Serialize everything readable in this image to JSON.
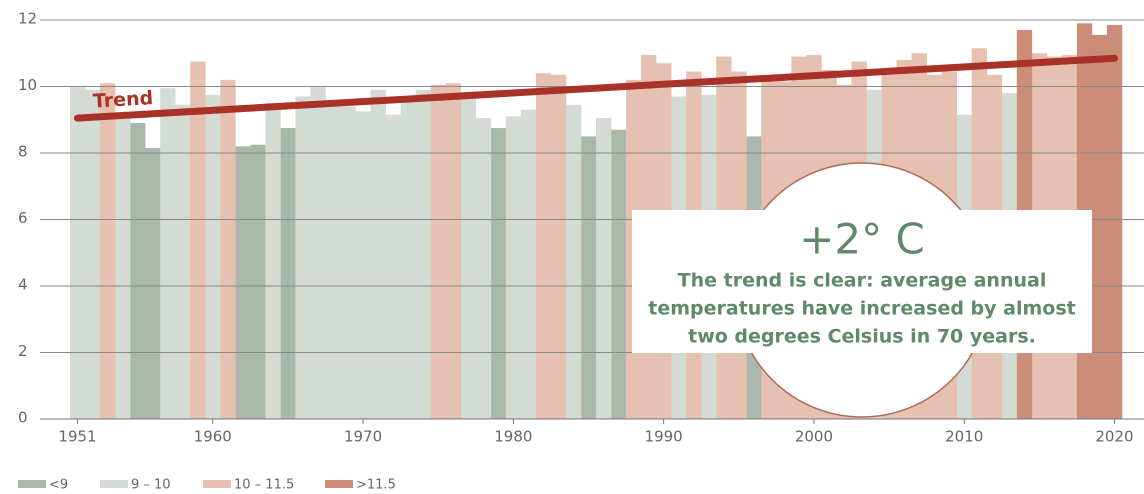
{
  "chart_data": {
    "type": "bar",
    "xlim": [
      1950.5,
      2020.5
    ],
    "xticks": [
      1951,
      1960,
      1970,
      1980,
      1990,
      2000,
      2010,
      2020
    ],
    "ylim": [
      0,
      12
    ],
    "yticks": [
      0,
      2,
      4,
      6,
      8,
      10,
      12
    ],
    "grid": true,
    "series": [
      {
        "name": "<9",
        "color": "#a9b8ab",
        "x": [
          1955,
          1956,
          1962,
          1963,
          1965,
          1979,
          1985,
          1987,
          1996
        ],
        "values": [
          8.9,
          8.15,
          8.2,
          8.25,
          8.75,
          8.75,
          8.5,
          8.7,
          8.5
        ]
      },
      {
        "name": "9 – 10",
        "color": "#d3dbd4",
        "x": [
          1951,
          1952,
          1954,
          1957,
          1958,
          1960,
          1964,
          1966,
          1967,
          1968,
          1969,
          1970,
          1971,
          1972,
          1973,
          1974,
          1977,
          1978,
          1980,
          1981,
          1984,
          1986,
          1991,
          1993,
          2004,
          2010,
          2013
        ],
        "values": [
          9.98,
          9.9,
          9.1,
          9.95,
          9.45,
          9.75,
          9.5,
          9.7,
          9.98,
          9.4,
          9.4,
          9.25,
          9.9,
          9.15,
          9.6,
          9.9,
          9.7,
          9.05,
          9.1,
          9.3,
          9.45,
          9.05,
          9.7,
          9.75,
          9.9,
          9.15,
          9.8
        ]
      },
      {
        "name": "10 – 11.5",
        "color": "#e6c1b2",
        "x": [
          1953,
          1959,
          1961,
          1975,
          1976,
          1982,
          1983,
          1988,
          1989,
          1990,
          1992,
          1994,
          1995,
          1997,
          1998,
          1999,
          2000,
          2001,
          2002,
          2003,
          2005,
          2006,
          2007,
          2008,
          2009,
          2011,
          2012,
          2015,
          2016,
          2017
        ],
        "values": [
          10.1,
          10.75,
          10.2,
          10.05,
          10.1,
          10.4,
          10.35,
          10.2,
          10.95,
          10.7,
          10.45,
          10.9,
          10.45,
          10.2,
          10.15,
          10.9,
          10.95,
          10.5,
          10.05,
          10.75,
          10.4,
          10.8,
          11.0,
          10.35,
          10.45,
          11.15,
          10.35,
          11.0,
          10.9,
          10.95
        ]
      },
      {
        "name": ">11.5",
        "color": "#cc8d78",
        "x": [
          2014,
          2018,
          2019,
          2020
        ],
        "values": [
          11.7,
          11.9,
          11.55,
          11.85
        ]
      }
    ],
    "trend": {
      "label": "Trend",
      "color": "#a83227",
      "x": [
        1951,
        2020
      ],
      "values": [
        9.05,
        10.85
      ]
    },
    "annotation": {
      "title": "+2° C",
      "lines": [
        "The trend is clear: average annual",
        "temperatures have increased by almost",
        "two degrees Celsius in 70 years."
      ]
    }
  }
}
